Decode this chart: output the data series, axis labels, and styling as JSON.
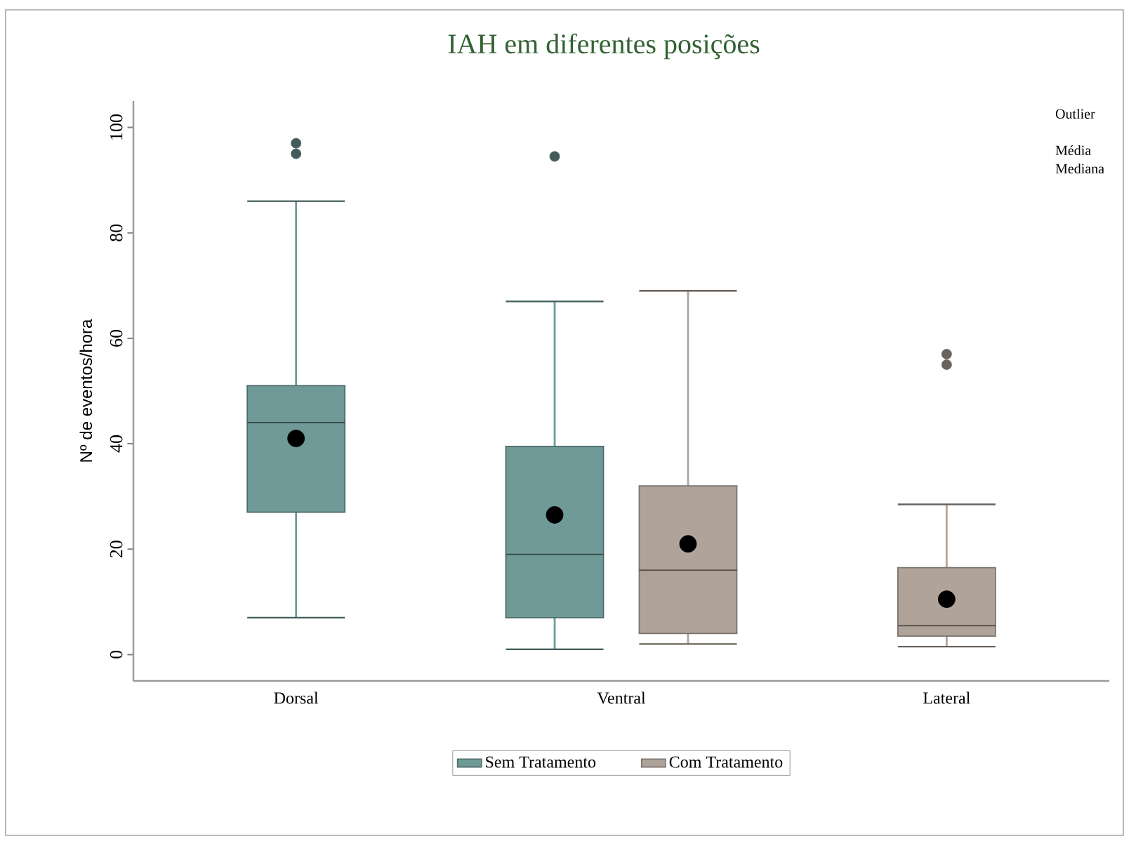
{
  "chart_data": {
    "type": "box",
    "title": "IAH em diferentes posições",
    "ylabel": "Nº de eventos/hora",
    "categories": [
      "Dorsal",
      "Ventral",
      "Lateral"
    ],
    "series": [
      {
        "name": "Sem Tratamento",
        "color": "#6f9a98",
        "boxes": [
          {
            "low": 7,
            "q1": 27,
            "median": 44,
            "q3": 51,
            "high": 86,
            "mean": 41,
            "outliers": [
              97,
              95
            ]
          },
          {
            "low": 1,
            "q1": 7,
            "median": 19,
            "q3": 39.5,
            "high": 67,
            "mean": 26.5,
            "outliers": [
              94.5
            ]
          },
          null
        ]
      },
      {
        "name": "Com Tratamento",
        "color": "#b0a49a",
        "boxes": [
          null,
          {
            "low": 2,
            "q1": 4,
            "median": 16,
            "q3": 32,
            "high": 69,
            "mean": 21
          },
          {
            "low": 1.5,
            "q1": 3.5,
            "median": 5.5,
            "q3": 16.5,
            "high": 28.5,
            "mean": 10.5,
            "outliers": [
              57,
              55
            ]
          }
        ]
      }
    ],
    "ylim": [
      -5,
      105
    ],
    "yticks": [
      0,
      20,
      40,
      60,
      80,
      100
    ],
    "grid": false,
    "legend": "bottom",
    "annotations": [
      "Outlier",
      "Média",
      "Mediana"
    ]
  }
}
